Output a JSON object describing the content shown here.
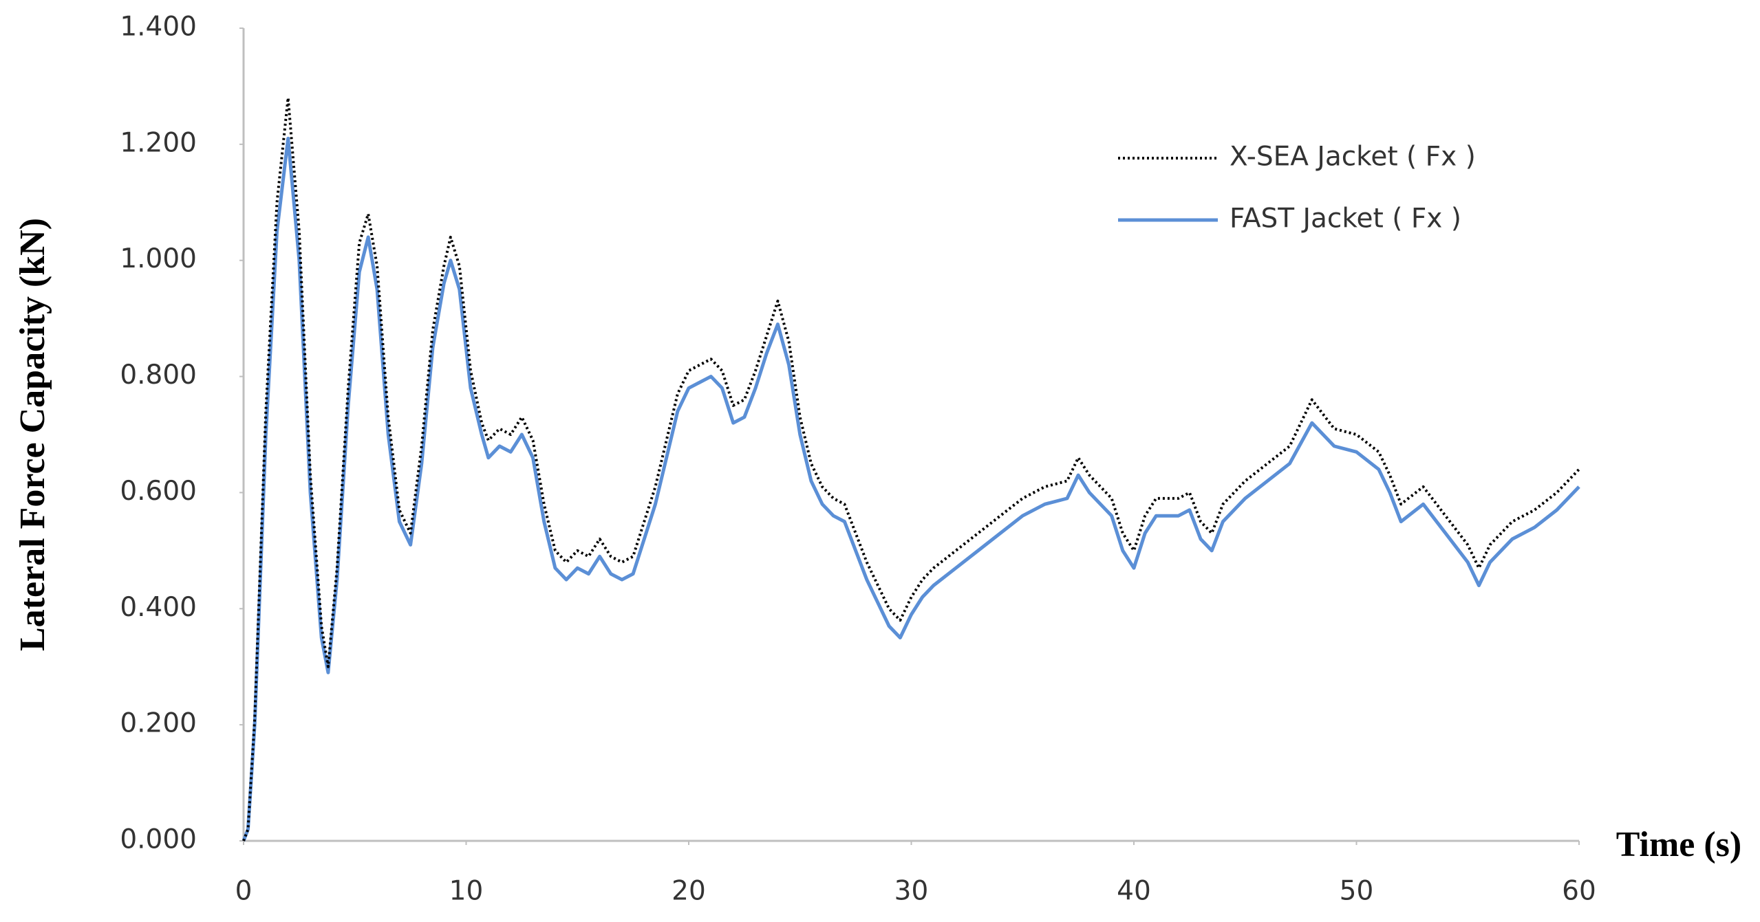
{
  "chart_data": {
    "type": "line",
    "xlabel": "Time (s)",
    "ylabel": "Lateral Force Capacity (kN)",
    "x": [
      0,
      0.2,
      0.5,
      1,
      1.5,
      2,
      2.5,
      3,
      3.5,
      3.8,
      4.2,
      4.7,
      5.2,
      5.6,
      6,
      6.5,
      7,
      7.5,
      8,
      8.5,
      9,
      9.3,
      9.7,
      10.2,
      10.7,
      11,
      11.5,
      12,
      12.5,
      13,
      13.5,
      14,
      14.5,
      15,
      15.5,
      16,
      16.5,
      17,
      17.5,
      18,
      18.5,
      19,
      19.5,
      20,
      20.5,
      21,
      21.5,
      22,
      22.5,
      23,
      23.5,
      24,
      24.5,
      25,
      25.5,
      26,
      26.5,
      27,
      27.5,
      28,
      28.5,
      29,
      29.5,
      30,
      30.5,
      31,
      32,
      33,
      34,
      35,
      36,
      37,
      37.5,
      38,
      39,
      39.5,
      40,
      40.5,
      41,
      42,
      42.5,
      43,
      43.5,
      44,
      45,
      46,
      47,
      48,
      49,
      50,
      51,
      51.5,
      52,
      53,
      54,
      55,
      55.5,
      56,
      57,
      58,
      59,
      60
    ],
    "series": [
      {
        "name": "X-SEA Jacket ( Fx )",
        "color": "#000000",
        "dash": "dotted",
        "values": [
          0,
          0.02,
          0.21,
          0.74,
          1.1,
          1.28,
          1.05,
          0.63,
          0.37,
          0.3,
          0.47,
          0.78,
          1.03,
          1.08,
          0.99,
          0.73,
          0.57,
          0.53,
          0.68,
          0.88,
          0.99,
          1.04,
          0.99,
          0.81,
          0.72,
          0.69,
          0.71,
          0.7,
          0.73,
          0.69,
          0.58,
          0.5,
          0.48,
          0.5,
          0.49,
          0.52,
          0.49,
          0.48,
          0.49,
          0.55,
          0.61,
          0.69,
          0.77,
          0.81,
          0.82,
          0.83,
          0.81,
          0.75,
          0.76,
          0.81,
          0.87,
          0.93,
          0.86,
          0.73,
          0.65,
          0.61,
          0.59,
          0.58,
          0.53,
          0.48,
          0.44,
          0.4,
          0.38,
          0.42,
          0.45,
          0.47,
          0.5,
          0.53,
          0.56,
          0.59,
          0.61,
          0.62,
          0.66,
          0.63,
          0.59,
          0.53,
          0.5,
          0.56,
          0.59,
          0.59,
          0.6,
          0.55,
          0.53,
          0.58,
          0.62,
          0.65,
          0.68,
          0.76,
          0.71,
          0.7,
          0.67,
          0.63,
          0.58,
          0.61,
          0.56,
          0.51,
          0.47,
          0.51,
          0.55,
          0.57,
          0.6,
          0.64
        ]
      },
      {
        "name": "FAST Jacket ( Fx )",
        "color": "#5b8fd6",
        "dash": "solid",
        "values": [
          0,
          0.02,
          0.2,
          0.7,
          1.05,
          1.21,
          1.0,
          0.6,
          0.35,
          0.29,
          0.45,
          0.75,
          0.98,
          1.04,
          0.95,
          0.7,
          0.55,
          0.51,
          0.65,
          0.85,
          0.96,
          1.0,
          0.95,
          0.78,
          0.7,
          0.66,
          0.68,
          0.67,
          0.7,
          0.66,
          0.55,
          0.47,
          0.45,
          0.47,
          0.46,
          0.49,
          0.46,
          0.45,
          0.46,
          0.52,
          0.58,
          0.66,
          0.74,
          0.78,
          0.79,
          0.8,
          0.78,
          0.72,
          0.73,
          0.78,
          0.84,
          0.89,
          0.82,
          0.7,
          0.62,
          0.58,
          0.56,
          0.55,
          0.5,
          0.45,
          0.41,
          0.37,
          0.35,
          0.39,
          0.42,
          0.44,
          0.47,
          0.5,
          0.53,
          0.56,
          0.58,
          0.59,
          0.63,
          0.6,
          0.56,
          0.5,
          0.47,
          0.53,
          0.56,
          0.56,
          0.57,
          0.52,
          0.5,
          0.55,
          0.59,
          0.62,
          0.65,
          0.72,
          0.68,
          0.67,
          0.64,
          0.6,
          0.55,
          0.58,
          0.53,
          0.48,
          0.44,
          0.48,
          0.52,
          0.54,
          0.57,
          0.61
        ]
      }
    ],
    "xlim": [
      0,
      60
    ],
    "xticks": [
      0,
      10,
      20,
      30,
      40,
      50,
      60
    ],
    "ylim": [
      0,
      1.4
    ],
    "yticks": [
      {
        "value": 0,
        "label": "0.000"
      },
      {
        "value": 0.2,
        "label": "0.200"
      },
      {
        "value": 0.4,
        "label": "0.400"
      },
      {
        "value": 0.6,
        "label": "0.600"
      },
      {
        "value": 0.8,
        "label": "0.800"
      },
      {
        "value": 1.0,
        "label": "1.000"
      },
      {
        "value": 1.2,
        "label": "1.200"
      },
      {
        "value": 1.4,
        "label": "1.400"
      }
    ],
    "grid": false,
    "legend": "upper-right"
  }
}
